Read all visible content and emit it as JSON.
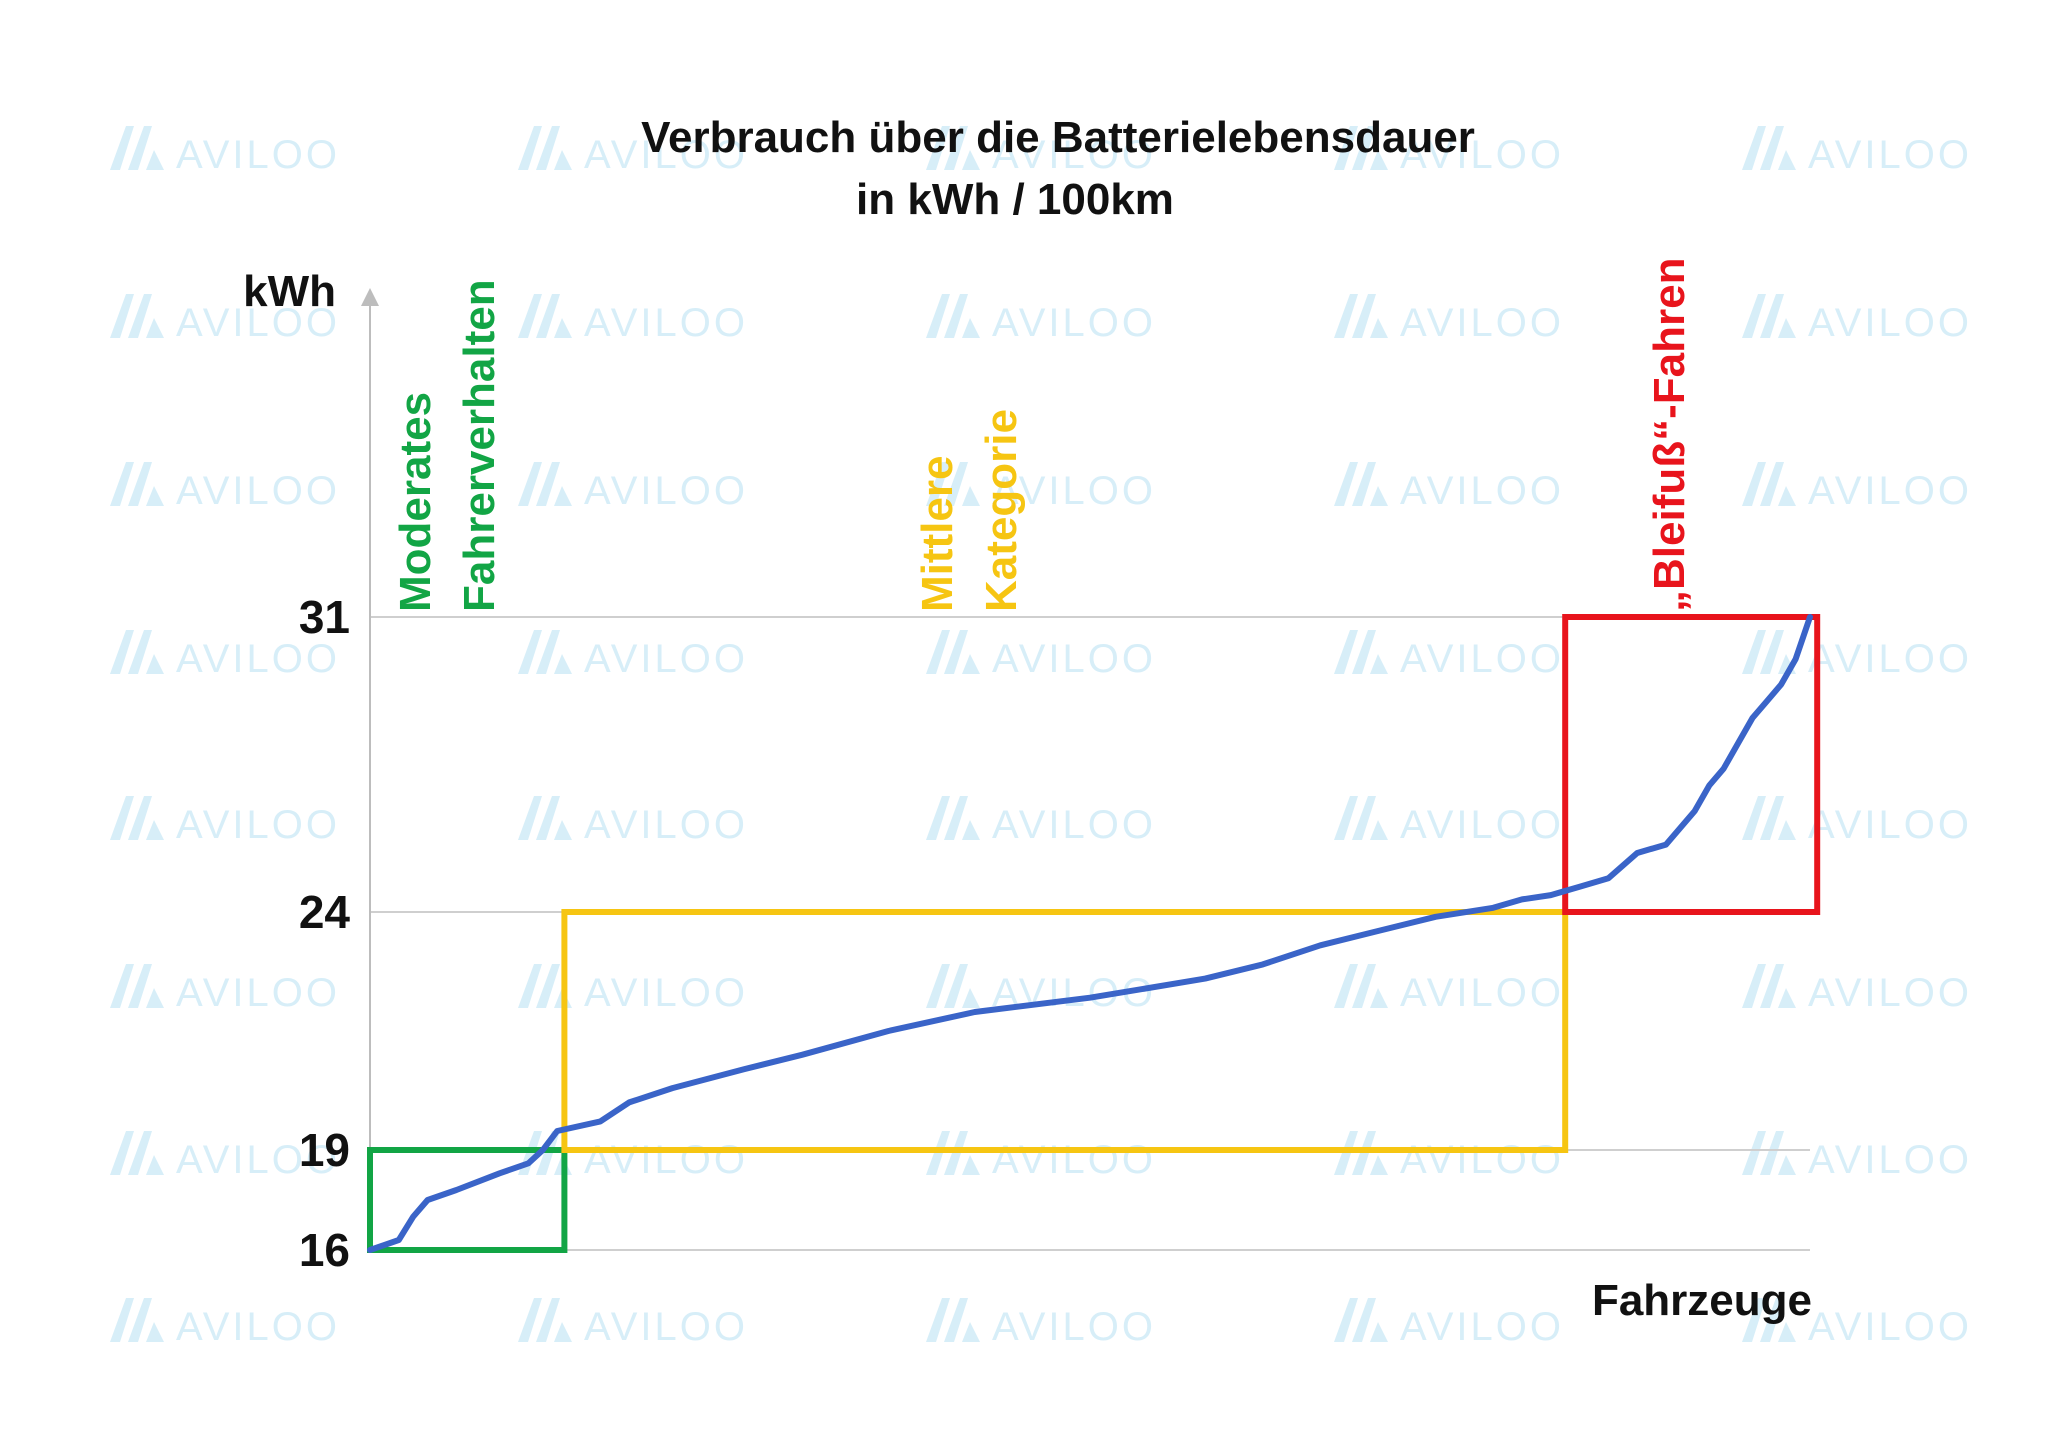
{
  "watermark": {
    "text": "AVILOO",
    "color": "#d7eef8"
  },
  "chart_data": {
    "type": "line",
    "title": [
      "Verbrauch über die Batterielebensdauer",
      "in kWh / 100km"
    ],
    "ylabel": "kWh",
    "xlabel": "Fahrzeuge",
    "ylim": [
      16,
      31
    ],
    "xlim": [
      0,
      100
    ],
    "yticks": [
      "31",
      "24",
      "19",
      "16"
    ],
    "grid": true,
    "series": [
      {
        "color": "#3a64c8",
        "x": [
          0,
          2,
          3,
          4,
          6,
          9,
          11,
          12,
          13,
          16,
          18,
          21,
          26,
          30,
          36,
          42,
          50,
          58,
          62,
          66,
          70,
          74,
          78,
          80,
          82,
          84,
          86,
          88,
          90,
          92,
          93,
          94,
          95,
          96,
          97,
          98,
          99,
          99.5,
          100
        ],
        "y": [
          16.0,
          16.3,
          17.0,
          17.5,
          17.8,
          18.3,
          18.6,
          19.0,
          19.4,
          19.6,
          20.0,
          20.3,
          20.7,
          21.0,
          21.5,
          21.9,
          22.2,
          22.6,
          22.9,
          23.3,
          23.6,
          23.9,
          24.1,
          24.3,
          24.4,
          24.6,
          24.8,
          25.4,
          25.6,
          26.4,
          27.0,
          27.4,
          28.0,
          28.6,
          29.0,
          29.4,
          30.0,
          30.5,
          31.0
        ]
      }
    ],
    "categories": [
      {
        "label": [
          "Moderates",
          "Fahrerverhalten"
        ],
        "color": "#12a545",
        "x_range": [
          0,
          13.5
        ],
        "y_range": [
          16,
          19
        ]
      },
      {
        "label": [
          "Mittlere",
          "Kategorie"
        ],
        "color": "#f6c512",
        "x_range": [
          13.5,
          83
        ],
        "y_range": [
          19,
          24
        ]
      },
      {
        "label": [
          "„Bleifuß“-Fahren"
        ],
        "color": "#e8141c",
        "x_range": [
          83,
          100.5
        ],
        "y_range": [
          24,
          31
        ]
      }
    ]
  }
}
